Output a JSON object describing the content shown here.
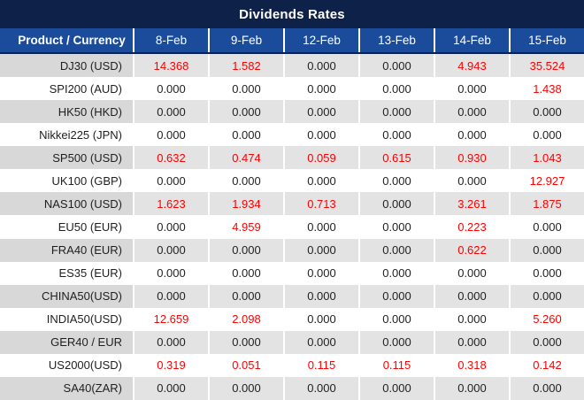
{
  "title": "Dividends Rates",
  "colors": {
    "navy": "#0E2148",
    "header_blue": "#1B4C9B",
    "label_grey": "#D8D8D8",
    "data_grey": "#E3E3E3",
    "red_value": "#FF0000",
    "black_value": "#1F1F1F"
  },
  "table": {
    "label_header": "Product / Currency",
    "date_columns": [
      "8-Feb",
      "9-Feb",
      "12-Feb",
      "13-Feb",
      "14-Feb",
      "15-Feb"
    ],
    "rows": [
      {
        "product": "DJ30 (USD)",
        "values": [
          "14.368",
          "1.582",
          "0.000",
          "0.000",
          "4.943",
          "35.524"
        ],
        "red": [
          true,
          true,
          false,
          false,
          true,
          true
        ]
      },
      {
        "product": "SPI200 (AUD)",
        "values": [
          "0.000",
          "0.000",
          "0.000",
          "0.000",
          "0.000",
          "1.438"
        ],
        "red": [
          false,
          false,
          false,
          false,
          false,
          true
        ]
      },
      {
        "product": "HK50 (HKD)",
        "values": [
          "0.000",
          "0.000",
          "0.000",
          "0.000",
          "0.000",
          "0.000"
        ],
        "red": [
          false,
          false,
          false,
          false,
          false,
          false
        ]
      },
      {
        "product": "Nikkei225 (JPN)",
        "values": [
          "0.000",
          "0.000",
          "0.000",
          "0.000",
          "0.000",
          "0.000"
        ],
        "red": [
          false,
          false,
          false,
          false,
          false,
          false
        ]
      },
      {
        "product": "SP500 (USD)",
        "values": [
          "0.632",
          "0.474",
          "0.059",
          "0.615",
          "0.930",
          "1.043"
        ],
        "red": [
          true,
          true,
          true,
          true,
          true,
          true
        ]
      },
      {
        "product": "UK100 (GBP)",
        "values": [
          "0.000",
          "0.000",
          "0.000",
          "0.000",
          "0.000",
          "12.927"
        ],
        "red": [
          false,
          false,
          false,
          false,
          false,
          true
        ]
      },
      {
        "product": "NAS100 (USD)",
        "values": [
          "1.623",
          "1.934",
          "0.713",
          "0.000",
          "3.261",
          "1.875"
        ],
        "red": [
          true,
          true,
          true,
          false,
          true,
          true
        ]
      },
      {
        "product": "EU50 (EUR)",
        "values": [
          "0.000",
          "4.959",
          "0.000",
          "0.000",
          "0.223",
          "0.000"
        ],
        "red": [
          false,
          true,
          false,
          false,
          true,
          false
        ]
      },
      {
        "product": "FRA40 (EUR)",
        "values": [
          "0.000",
          "0.000",
          "0.000",
          "0.000",
          "0.622",
          "0.000"
        ],
        "red": [
          false,
          false,
          false,
          false,
          true,
          false
        ]
      },
      {
        "product": "ES35 (EUR)",
        "values": [
          "0.000",
          "0.000",
          "0.000",
          "0.000",
          "0.000",
          "0.000"
        ],
        "red": [
          false,
          false,
          false,
          false,
          false,
          false
        ]
      },
      {
        "product": "CHINA50(USD)",
        "values": [
          "0.000",
          "0.000",
          "0.000",
          "0.000",
          "0.000",
          "0.000"
        ],
        "red": [
          false,
          false,
          false,
          false,
          false,
          false
        ]
      },
      {
        "product": "INDIA50(USD)",
        "values": [
          "12.659",
          "2.098",
          "0.000",
          "0.000",
          "0.000",
          "5.260"
        ],
        "red": [
          true,
          true,
          false,
          false,
          false,
          true
        ]
      },
      {
        "product": "GER40 / EUR",
        "values": [
          "0.000",
          "0.000",
          "0.000",
          "0.000",
          "0.000",
          "0.000"
        ],
        "red": [
          false,
          false,
          false,
          false,
          false,
          false
        ]
      },
      {
        "product": "US2000(USD)",
        "values": [
          "0.319",
          "0.051",
          "0.115",
          "0.115",
          "0.318",
          "0.142"
        ],
        "red": [
          true,
          true,
          true,
          true,
          true,
          true
        ]
      },
      {
        "product": "SA40(ZAR)",
        "values": [
          "0.000",
          "0.000",
          "0.000",
          "0.000",
          "0.000",
          "0.000"
        ],
        "red": [
          false,
          false,
          false,
          false,
          false,
          false
        ]
      }
    ]
  }
}
